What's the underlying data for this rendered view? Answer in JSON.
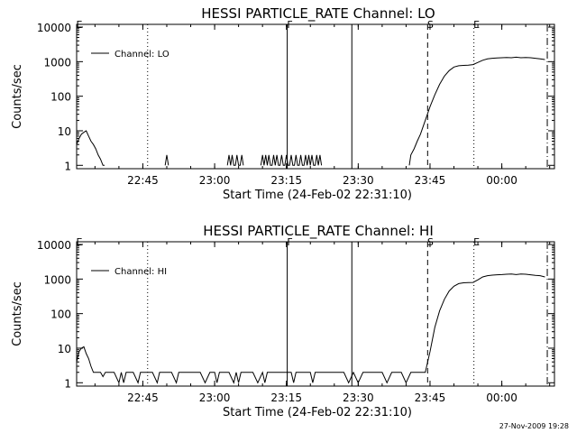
{
  "footer": {
    "timestamp": "27-Nov-2009 19:28"
  },
  "chart_data": [
    {
      "type": "line",
      "title": "HESSI PARTICLE_RATE Channel: LO",
      "xlabel": "Start Time (24-Feb-02 22:31:10)",
      "ylabel": "Counts/sec",
      "yscale": "log",
      "xlim": [
        "22:31:10",
        "00:11:00"
      ],
      "ylim": [
        0.8,
        12000
      ],
      "x_tick_labels": [
        "22:45",
        "23:00",
        "23:15",
        "23:30",
        "23:45",
        "00:00"
      ],
      "y_tick_labels": [
        "1",
        "10",
        "100",
        "1000",
        "10000"
      ],
      "grid": false,
      "legend": {
        "placement": "top-left",
        "entries": [
          "Channel: LO"
        ]
      },
      "series": [
        {
          "name": "Channel: LO",
          "x": [
            "22:31:10",
            "22:31:40",
            "22:32:10",
            "22:32:40",
            "22:33:10",
            "22:33:40",
            "22:34:10",
            "22:34:40",
            "22:35:10",
            "22:35:40",
            "22:36:10",
            "22:36:40",
            "22:37:00",
            "22:49:40",
            "22:50:00",
            "22:50:20",
            "23:02:40",
            "23:03:00",
            "23:03:20",
            "23:03:40",
            "23:04:00",
            "23:04:20",
            "23:04:40",
            "23:05:00",
            "23:05:20",
            "23:05:40",
            "23:06:00",
            "23:09:40",
            "23:10:00",
            "23:10:20",
            "23:10:40",
            "23:11:00",
            "23:11:20",
            "23:11:40",
            "23:12:00",
            "23:12:20",
            "23:12:40",
            "23:13:00",
            "23:13:20",
            "23:13:40",
            "23:14:00",
            "23:14:20",
            "23:14:40",
            "23:15:00",
            "23:15:20",
            "23:15:40",
            "23:16:00",
            "23:16:20",
            "23:16:40",
            "23:17:00",
            "23:17:20",
            "23:17:40",
            "23:18:00",
            "23:18:20",
            "23:18:40",
            "23:19:00",
            "23:19:20",
            "23:19:40",
            "23:20:00",
            "23:20:20",
            "23:20:40",
            "23:21:00",
            "23:21:20",
            "23:21:40",
            "23:22:00",
            "23:22:20",
            "23:40:40",
            "23:41:00",
            "23:41:40",
            "23:42:20",
            "23:43:00",
            "23:44:00",
            "23:45:00",
            "23:46:00",
            "23:47:00",
            "23:48:00",
            "23:49:00",
            "23:50:00",
            "23:51:00",
            "23:52:00",
            "23:53:00",
            "23:54:00",
            "23:55:00",
            "23:56:00",
            "23:57:00",
            "23:58:00",
            "23:59:00",
            "00:00:00",
            "00:01:00",
            "00:02:00",
            "00:03:00",
            "00:04:00",
            "00:05:00",
            "00:06:00",
            "00:07:00",
            "00:08:00",
            "00:09:00"
          ],
          "y": [
            4,
            6,
            8,
            9,
            10,
            7,
            5,
            4,
            3,
            2,
            1.5,
            1,
            1,
            1,
            2,
            1,
            1,
            2,
            1,
            2,
            1,
            1,
            2,
            1,
            1,
            2,
            1,
            1,
            2,
            1,
            2,
            1,
            2,
            1,
            1,
            2,
            1,
            2,
            1,
            1,
            2,
            1,
            1,
            2,
            1,
            1,
            2,
            1,
            1,
            2,
            1,
            1,
            2,
            1,
            1,
            2,
            1,
            2,
            1,
            2,
            1,
            1,
            2,
            1,
            2,
            1,
            1,
            2,
            3,
            5,
            8,
            20,
            50,
            110,
            220,
            380,
            550,
            700,
            760,
            780,
            790,
            820,
            950,
            1100,
            1200,
            1250,
            1280,
            1300,
            1320,
            1300,
            1350,
            1300,
            1320,
            1300,
            1250,
            1200,
            1150
          ],
          "gaps_before_index": [
            13,
            16,
            27,
            66
          ]
        }
      ],
      "vertical_markers": [
        {
          "x": "22:31:10",
          "style": "solid",
          "label": "E"
        },
        {
          "x": "22:46:00",
          "style": "dotted",
          "label": ""
        },
        {
          "x": "23:15:10",
          "style": "solid",
          "label": "F"
        },
        {
          "x": "23:28:40",
          "style": "solid",
          "label": ""
        },
        {
          "x": "23:44:30",
          "style": "dashed",
          "label": "S"
        },
        {
          "x": "23:54:10",
          "style": "dotted",
          "label": "E"
        },
        {
          "x": "00:09:30",
          "style": "dashdot",
          "label": ""
        }
      ]
    },
    {
      "type": "line",
      "title": "HESSI PARTICLE_RATE Channel: HI",
      "xlabel": "Start Time (24-Feb-02 22:31:10)",
      "ylabel": "Counts/sec",
      "yscale": "log",
      "xlim": [
        "22:31:10",
        "00:11:00"
      ],
      "ylim": [
        0.8,
        12000
      ],
      "x_tick_labels": [
        "22:45",
        "23:00",
        "23:15",
        "23:30",
        "23:45",
        "00:00"
      ],
      "y_tick_labels": [
        "1",
        "10",
        "100",
        "1000",
        "10000"
      ],
      "grid": false,
      "legend": {
        "placement": "top-left",
        "entries": [
          "Channel: HI"
        ]
      },
      "series": [
        {
          "name": "Channel: HI",
          "x": [
            "22:31:10",
            "22:31:40",
            "22:32:10",
            "22:32:40",
            "22:33:10",
            "22:33:40",
            "22:34:10",
            "22:34:40",
            "22:35:10",
            "22:35:40",
            "22:36:10",
            "22:36:40",
            "22:37:10",
            "22:38:00",
            "22:39:00",
            "22:40:00",
            "22:40:30",
            "22:41:00",
            "22:41:30",
            "22:42:00",
            "22:43:00",
            "22:44:00",
            "22:44:30",
            "22:45:00",
            "22:46:00",
            "22:47:00",
            "22:48:00",
            "22:48:30",
            "22:49:00",
            "22:50:00",
            "22:51:00",
            "22:52:00",
            "22:52:30",
            "22:53:00",
            "22:54:00",
            "22:55:00",
            "22:56:00",
            "22:57:00",
            "22:58:00",
            "22:59:00",
            "23:00:00",
            "23:00:30",
            "23:01:00",
            "23:02:00",
            "23:03:00",
            "23:04:00",
            "23:04:30",
            "23:05:00",
            "23:05:30",
            "23:06:00",
            "23:07:00",
            "23:08:00",
            "23:09:00",
            "23:10:00",
            "23:10:30",
            "23:11:00",
            "23:12:00",
            "23:13:00",
            "23:14:00",
            "23:15:00",
            "23:16:00",
            "23:16:30",
            "23:17:00",
            "23:18:00",
            "23:19:00",
            "23:20:00",
            "23:20:30",
            "23:21:00",
            "23:22:00",
            "23:23:00",
            "23:24:00",
            "23:25:00",
            "23:26:00",
            "23:27:00",
            "23:28:00",
            "23:29:00",
            "23:30:00",
            "23:31:00",
            "23:32:00",
            "23:33:00",
            "23:34:00",
            "23:35:00",
            "23:36:00",
            "23:37:00",
            "23:38:00",
            "23:39:00",
            "23:40:00",
            "23:41:00",
            "23:42:00",
            "23:43:00",
            "23:44:00",
            "23:45:00",
            "23:46:00",
            "23:47:00",
            "23:48:00",
            "23:49:00",
            "23:50:00",
            "23:51:00",
            "23:52:00",
            "23:53:00",
            "23:54:00",
            "23:55:00",
            "23:56:00",
            "23:57:00",
            "23:58:00",
            "23:59:00",
            "00:00:00",
            "00:01:00",
            "00:02:00",
            "00:03:00",
            "00:04:00",
            "00:05:00",
            "00:06:00",
            "00:07:00",
            "00:08:00",
            "00:09:00"
          ],
          "y": [
            4,
            8,
            10,
            11,
            7,
            5,
            3,
            2,
            2,
            2,
            2,
            1.5,
            2,
            2,
            2,
            1,
            2,
            1,
            2,
            2,
            2,
            1,
            2,
            2,
            2,
            2,
            1,
            2,
            2,
            2,
            2,
            1,
            2,
            2,
            2,
            2,
            2,
            2,
            1,
            2,
            2,
            1,
            2,
            2,
            2,
            1,
            2,
            1,
            2,
            2,
            2,
            2,
            1,
            2,
            1,
            2,
            2,
            2,
            2,
            2,
            2,
            1,
            2,
            2,
            2,
            2,
            1,
            2,
            2,
            2,
            2,
            2,
            2,
            2,
            1,
            2,
            1,
            2,
            2,
            2,
            2,
            2,
            1,
            2,
            2,
            2,
            1,
            2,
            2,
            2,
            2,
            8,
            40,
            120,
            260,
            450,
            620,
            740,
            780,
            790,
            800,
            950,
            1150,
            1250,
            1300,
            1330,
            1350,
            1380,
            1400,
            1350,
            1400,
            1380,
            1330,
            1280,
            1250,
            1150
          ],
          "gaps_before_index": []
        }
      ],
      "vertical_markers": [
        {
          "x": "22:31:10",
          "style": "solid",
          "label": "E"
        },
        {
          "x": "22:46:00",
          "style": "dotted",
          "label": ""
        },
        {
          "x": "23:15:10",
          "style": "solid",
          "label": "F"
        },
        {
          "x": "23:28:40",
          "style": "solid",
          "label": ""
        },
        {
          "x": "23:44:30",
          "style": "dashed",
          "label": "S"
        },
        {
          "x": "23:54:10",
          "style": "dotted",
          "label": "E"
        },
        {
          "x": "00:09:30",
          "style": "dashdot",
          "label": ""
        }
      ]
    }
  ]
}
